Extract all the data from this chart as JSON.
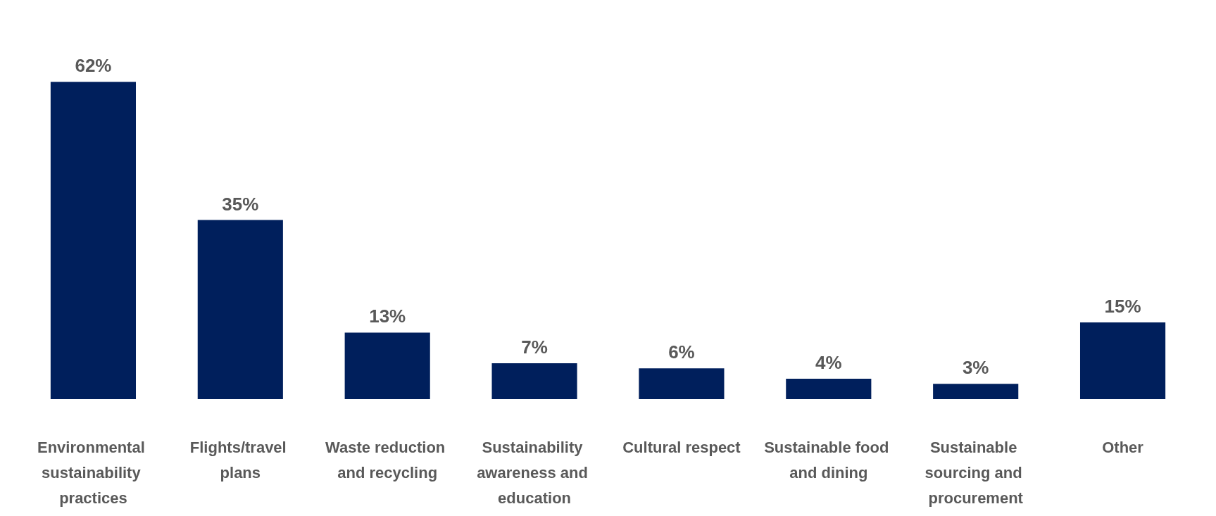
{
  "chart_data": {
    "type": "bar",
    "categories": [
      "Environmental sustainability practices",
      "Flights/travel plans",
      "Waste reduction and recycling",
      "Sustainability awareness and education",
      "Cultural respect",
      "Sustainable food and dining",
      "Sustainable sourcing and procurement",
      "Other"
    ],
    "values": [
      62,
      35,
      13,
      7,
      6,
      4,
      3,
      15
    ],
    "value_labels": [
      "62%",
      "35%",
      "13%",
      "7%",
      "6%",
      "4%",
      "3%",
      "15%"
    ],
    "color": "#001f5c"
  }
}
